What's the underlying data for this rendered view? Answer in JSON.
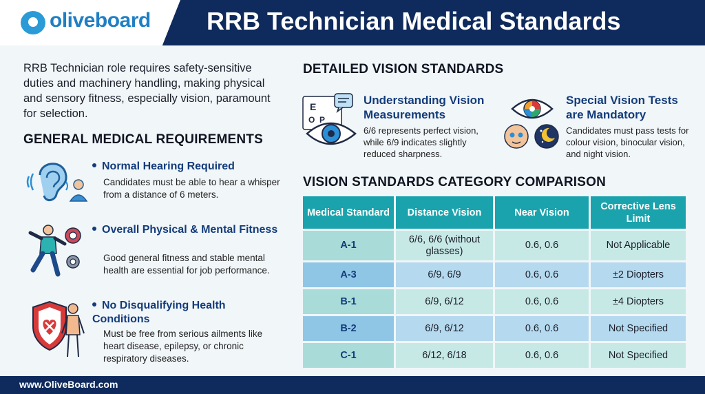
{
  "header": {
    "logo_text": "oliveboard",
    "title": "RRB Technician Medical Standards"
  },
  "intro": "RRB Technician role requires safety-sensitive duties and machinery handling, making physical and sensory fitness, especially vision, paramount for selection.",
  "general": {
    "heading": "GENERAL MEDICAL REQUIREMENTS",
    "items": [
      {
        "icon": "ear-icon",
        "title": "Normal Hearing Required",
        "desc": "Candidates must be able to hear a whisper from a distance of 6 meters."
      },
      {
        "icon": "fitness-icon",
        "title": "Overall Physical & Mental Fitness",
        "desc": "Good general fitness and stable mental health are essential for job performance."
      },
      {
        "icon": "health-shield-icon",
        "title": "No Disqualifying Health Conditions",
        "desc": "Must be free from serious ailments like heart disease, epilepsy, or chronic respiratory diseases."
      }
    ]
  },
  "vision": {
    "heading": "DETAILED VISION STANDARDS",
    "cards": [
      {
        "icon": "eye-chart-icon",
        "title": "Understanding Vision Measurements",
        "desc": "6/6 represents perfect vision, while 6/9 indicates slightly reduced sharpness."
      },
      {
        "icon": "vision-tests-icon",
        "title": "Special Vision Tests are Mandatory",
        "desc": "Candidates must pass tests for colour vision, binocular vision, and night vision."
      }
    ],
    "eye_chart_letters": [
      "E",
      "O",
      "P"
    ]
  },
  "comparison": {
    "heading": "VISION STANDARDS CATEGORY COMPARISON",
    "columns": [
      "Medical Standard",
      "Distance Vision",
      "Near Vision",
      "Corrective Lens Limit"
    ],
    "rows": [
      {
        "standard": "A-1",
        "distance": "6/6, 6/6 (without glasses)",
        "near": "0.6, 0.6",
        "lens": "Not Applicable"
      },
      {
        "standard": "A-3",
        "distance": "6/9, 6/9",
        "near": "0.6, 0.6",
        "lens": "±2 Diopters"
      },
      {
        "standard": "B-1",
        "distance": "6/9, 6/12",
        "near": "0.6, 0.6",
        "lens": "±4 Diopters"
      },
      {
        "standard": "B-2",
        "distance": "6/9, 6/12",
        "near": "0.6, 0.6",
        "lens": "Not Specified"
      },
      {
        "standard": "C-1",
        "distance": "6/12, 6/18",
        "near": "0.6, 0.6",
        "lens": "Not Specified"
      }
    ],
    "row_colors": [
      "#c7e9e6",
      "#b5d9ee",
      "#c7e9e6",
      "#b5d9ee",
      "#c7e9e6"
    ],
    "std_colors": [
      "#a9dcd9",
      "#8fc6e6",
      "#a9dcd9",
      "#8fc6e6",
      "#a9dcd9"
    ]
  },
  "footer": {
    "url": "www.OliveBoard.com"
  },
  "colors": {
    "navy": "#0f2a5c",
    "teal": "#1aa3ad",
    "accent_blue": "#133c7a"
  }
}
